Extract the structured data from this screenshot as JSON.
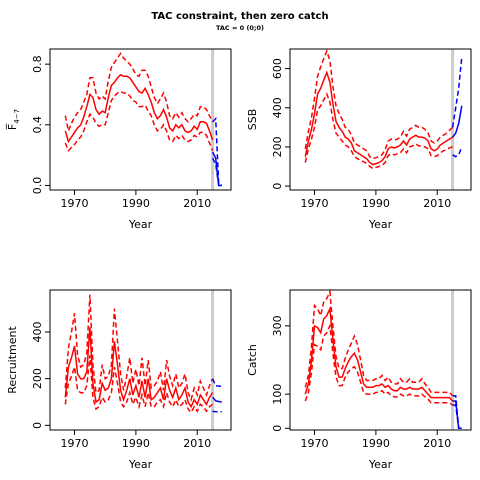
{
  "title": "TAC constraint, then zero catch",
  "subtitle": "TAC = 0 (0;0)",
  "colors": {
    "historic": "#ff0000",
    "projection": "#0000ff",
    "marker": "#cccccc",
    "axis": "#000000"
  },
  "chart_data": [
    {
      "type": "line",
      "panel": "fbar",
      "ylabel": "F̅",
      "ylabel_sub": "4−7",
      "xlabel": "Year",
      "xlim": [
        1962,
        2021
      ],
      "ylim": [
        -0.03,
        0.9
      ],
      "xticks": [
        1970,
        1990,
        2010
      ],
      "yticks": [
        0,
        0.4,
        0.8
      ],
      "ytick_labels": [
        "0.0",
        "0.4",
        "0.8"
      ],
      "marker_year": 2015,
      "historic": {
        "x": [
          1967,
          1968,
          1969,
          1970,
          1971,
          1972,
          1973,
          1974,
          1975,
          1976,
          1977,
          1978,
          1979,
          1980,
          1981,
          1982,
          1983,
          1984,
          1985,
          1986,
          1987,
          1988,
          1989,
          1990,
          1991,
          1992,
          1993,
          1994,
          1995,
          1996,
          1997,
          1998,
          1999,
          2000,
          2001,
          2002,
          2003,
          2004,
          2005,
          2006,
          2007,
          2008,
          2009,
          2010,
          2011,
          2012,
          2013,
          2014,
          2015
        ],
        "mid": [
          0.36,
          0.29,
          0.32,
          0.35,
          0.38,
          0.4,
          0.45,
          0.52,
          0.6,
          0.58,
          0.5,
          0.47,
          0.49,
          0.48,
          0.58,
          0.66,
          0.68,
          0.71,
          0.73,
          0.72,
          0.72,
          0.71,
          0.68,
          0.65,
          0.62,
          0.61,
          0.64,
          0.6,
          0.55,
          0.48,
          0.44,
          0.46,
          0.5,
          0.45,
          0.38,
          0.36,
          0.4,
          0.38,
          0.4,
          0.36,
          0.35,
          0.36,
          0.39,
          0.37,
          0.42,
          0.42,
          0.41,
          0.36,
          0.3
        ],
        "upper": [
          0.46,
          0.36,
          0.41,
          0.45,
          0.48,
          0.5,
          0.55,
          0.6,
          0.71,
          0.71,
          0.61,
          0.57,
          0.59,
          0.57,
          0.69,
          0.78,
          0.81,
          0.84,
          0.87,
          0.84,
          0.82,
          0.8,
          0.77,
          0.73,
          0.72,
          0.76,
          0.76,
          0.72,
          0.65,
          0.58,
          0.54,
          0.57,
          0.61,
          0.55,
          0.46,
          0.44,
          0.48,
          0.45,
          0.48,
          0.44,
          0.42,
          0.44,
          0.47,
          0.46,
          0.52,
          0.52,
          0.5,
          0.46,
          0.42
        ],
        "lower": [
          0.28,
          0.23,
          0.25,
          0.27,
          0.3,
          0.32,
          0.36,
          0.42,
          0.47,
          0.45,
          0.41,
          0.39,
          0.4,
          0.4,
          0.48,
          0.56,
          0.59,
          0.61,
          0.62,
          0.61,
          0.61,
          0.59,
          0.56,
          0.55,
          0.52,
          0.52,
          0.53,
          0.49,
          0.46,
          0.4,
          0.36,
          0.37,
          0.4,
          0.36,
          0.3,
          0.29,
          0.33,
          0.31,
          0.33,
          0.3,
          0.29,
          0.3,
          0.33,
          0.32,
          0.35,
          0.35,
          0.33,
          0.28,
          0.23
        ]
      },
      "projection": {
        "x": [
          2015,
          2016,
          2017,
          2018
        ],
        "mid": [
          0.22,
          0.18,
          0.0,
          0.0
        ],
        "upper": [
          0.42,
          0.44,
          0.01,
          0.0
        ],
        "lower": [
          0.18,
          0.14,
          0.0,
          0.0
        ]
      }
    },
    {
      "type": "line",
      "panel": "ssb",
      "ylabel": "SSB",
      "xlabel": "Year",
      "xlim": [
        1962,
        2021
      ],
      "ylim": [
        -20,
        700
      ],
      "xticks": [
        1970,
        1990,
        2010
      ],
      "yticks": [
        0,
        200,
        400,
        600
      ],
      "ytick_labels": [
        "0",
        "200",
        "400",
        "600"
      ],
      "marker_year": 2015,
      "historic": {
        "x": [
          1967,
          1968,
          1969,
          1970,
          1971,
          1972,
          1973,
          1974,
          1975,
          1976,
          1977,
          1978,
          1979,
          1980,
          1981,
          1982,
          1983,
          1984,
          1985,
          1986,
          1987,
          1988,
          1989,
          1990,
          1991,
          1992,
          1993,
          1994,
          1995,
          1996,
          1997,
          1998,
          1999,
          2000,
          2001,
          2002,
          2003,
          2004,
          2005,
          2006,
          2007,
          2008,
          2009,
          2010,
          2011,
          2012,
          2013,
          2014,
          2015
        ],
        "mid": [
          150,
          230,
          290,
          370,
          470,
          500,
          540,
          580,
          530,
          420,
          330,
          300,
          280,
          250,
          240,
          220,
          180,
          170,
          160,
          150,
          140,
          120,
          110,
          115,
          120,
          130,
          150,
          190,
          200,
          195,
          200,
          210,
          230,
          210,
          240,
          250,
          260,
          250,
          250,
          245,
          230,
          190,
          180,
          190,
          210,
          220,
          230,
          240,
          250
        ],
        "upper": [
          190,
          280,
          350,
          450,
          560,
          610,
          650,
          690,
          640,
          510,
          410,
          370,
          340,
          300,
          290,
          260,
          220,
          210,
          200,
          190,
          180,
          150,
          140,
          145,
          150,
          160,
          185,
          230,
          240,
          235,
          240,
          250,
          280,
          255,
          290,
          300,
          310,
          300,
          300,
          290,
          270,
          230,
          220,
          230,
          250,
          260,
          270,
          285,
          300
        ],
        "lower": [
          120,
          190,
          240,
          300,
          390,
          410,
          440,
          470,
          430,
          340,
          270,
          250,
          230,
          210,
          200,
          180,
          150,
          140,
          130,
          125,
          115,
          100,
          90,
          95,
          100,
          105,
          120,
          155,
          165,
          160,
          165,
          170,
          190,
          170,
          200,
          205,
          215,
          205,
          205,
          200,
          190,
          155,
          150,
          155,
          170,
          180,
          185,
          195,
          200
        ]
      },
      "projection": {
        "x": [
          2015,
          2016,
          2017,
          2018
        ],
        "mid": [
          250,
          270,
          320,
          410
        ],
        "upper": [
          300,
          400,
          500,
          660
        ],
        "lower": [
          160,
          150,
          160,
          200
        ]
      }
    },
    {
      "type": "line",
      "panel": "recruitment",
      "ylabel": "Recruitment",
      "xlabel": "Year",
      "xlim": [
        1962,
        2021
      ],
      "ylim": [
        -20,
        580
      ],
      "xticks": [
        1970,
        1990,
        2010
      ],
      "yticks": [
        0,
        200,
        400
      ],
      "ytick_labels": [
        "0",
        "200",
        "400"
      ],
      "marker_year": 2015,
      "historic": {
        "x": [
          1967,
          1968,
          1969,
          1970,
          1971,
          1972,
          1973,
          1974,
          1975,
          1976,
          1977,
          1978,
          1979,
          1980,
          1981,
          1982,
          1983,
          1984,
          1985,
          1986,
          1987,
          1988,
          1989,
          1990,
          1991,
          1992,
          1993,
          1994,
          1995,
          1996,
          1997,
          1998,
          1999,
          2000,
          2001,
          2002,
          2003,
          2004,
          2005,
          2006,
          2007,
          2008,
          2009,
          2010,
          2011,
          2012,
          2013,
          2014,
          2015
        ],
        "mid": [
          120,
          250,
          290,
          340,
          220,
          200,
          200,
          230,
          420,
          180,
          100,
          110,
          180,
          150,
          160,
          200,
          360,
          260,
          150,
          110,
          150,
          200,
          130,
          170,
          120,
          190,
          120,
          200,
          110,
          120,
          140,
          160,
          110,
          200,
          150,
          120,
          160,
          110,
          130,
          160,
          100,
          80,
          110,
          90,
          130,
          110,
          90,
          120,
          140
        ],
        "upper": [
          160,
          330,
          400,
          480,
          300,
          250,
          260,
          310,
          560,
          260,
          140,
          150,
          260,
          200,
          210,
          260,
          500,
          360,
          220,
          150,
          210,
          290,
          180,
          240,
          170,
          290,
          170,
          280,
          160,
          170,
          190,
          230,
          150,
          280,
          210,
          170,
          220,
          160,
          180,
          220,
          140,
          110,
          160,
          130,
          190,
          160,
          130,
          170,
          200
        ],
        "lower": [
          90,
          180,
          210,
          250,
          150,
          140,
          140,
          170,
          300,
          120,
          70,
          80,
          120,
          100,
          110,
          140,
          250,
          180,
          100,
          80,
          100,
          140,
          90,
          120,
          80,
          130,
          80,
          140,
          80,
          80,
          100,
          110,
          80,
          140,
          100,
          80,
          110,
          80,
          90,
          110,
          70,
          55,
          80,
          60,
          90,
          80,
          60,
          80,
          90
        ]
      },
      "projection": {
        "x": [
          2015,
          2016,
          2017,
          2018
        ],
        "mid": [
          120,
          105,
          102,
          100
        ],
        "upper": [
          200,
          170,
          168,
          168
        ],
        "lower": [
          60,
          58,
          58,
          58
        ]
      }
    },
    {
      "type": "line",
      "panel": "catch",
      "ylabel": "Catch",
      "xlabel": "Year",
      "xlim": [
        1962,
        2021
      ],
      "ylim": [
        -5,
        405
      ],
      "xticks": [
        1970,
        1990,
        2010
      ],
      "yticks": [
        0,
        100,
        300
      ],
      "ytick_labels": [
        "0",
        "100",
        "300"
      ],
      "marker_year": 2015,
      "historic": {
        "x": [
          1967,
          1968,
          1969,
          1970,
          1971,
          1972,
          1973,
          1974,
          1975,
          1976,
          1977,
          1978,
          1979,
          1980,
          1981,
          1982,
          1983,
          1984,
          1985,
          1986,
          1987,
          1988,
          1989,
          1990,
          1991,
          1992,
          1993,
          1994,
          1995,
          1996,
          1997,
          1998,
          1999,
          2000,
          2001,
          2002,
          2003,
          2004,
          2005,
          2006,
          2007,
          2008,
          2009,
          2010,
          2011,
          2012,
          2013,
          2014,
          2015
        ],
        "mid": [
          100,
          130,
          200,
          300,
          295,
          280,
          320,
          330,
          350,
          260,
          180,
          150,
          150,
          175,
          195,
          210,
          220,
          200,
          165,
          130,
          120,
          120,
          120,
          125,
          125,
          130,
          120,
          125,
          115,
          110,
          110,
          120,
          115,
          115,
          120,
          115,
          115,
          115,
          120,
          110,
          100,
          90,
          90,
          90,
          90,
          90,
          90,
          90,
          80
        ],
        "upper": [
          120,
          155,
          240,
          360,
          350,
          330,
          370,
          380,
          400,
          300,
          210,
          175,
          175,
          205,
          230,
          250,
          270,
          245,
          200,
          155,
          140,
          140,
          140,
          145,
          145,
          155,
          140,
          150,
          135,
          130,
          130,
          145,
          135,
          135,
          145,
          135,
          135,
          135,
          145,
          130,
          120,
          105,
          105,
          105,
          105,
          105,
          105,
          105,
          95
        ],
        "lower": [
          80,
          105,
          165,
          245,
          240,
          230,
          270,
          280,
          300,
          220,
          150,
          125,
          125,
          150,
          165,
          175,
          180,
          165,
          135,
          105,
          100,
          100,
          100,
          105,
          105,
          110,
          100,
          105,
          95,
          92,
          92,
          100,
          95,
          95,
          100,
          95,
          95,
          95,
          100,
          92,
          85,
          75,
          75,
          75,
          75,
          75,
          75,
          75,
          68
        ]
      },
      "projection": {
        "x": [
          2015,
          2016,
          2017,
          2018
        ],
        "mid": [
          80,
          80,
          0,
          0
        ],
        "upper": [
          95,
          95,
          0,
          0
        ],
        "lower": [
          68,
          68,
          0,
          0
        ]
      }
    }
  ]
}
